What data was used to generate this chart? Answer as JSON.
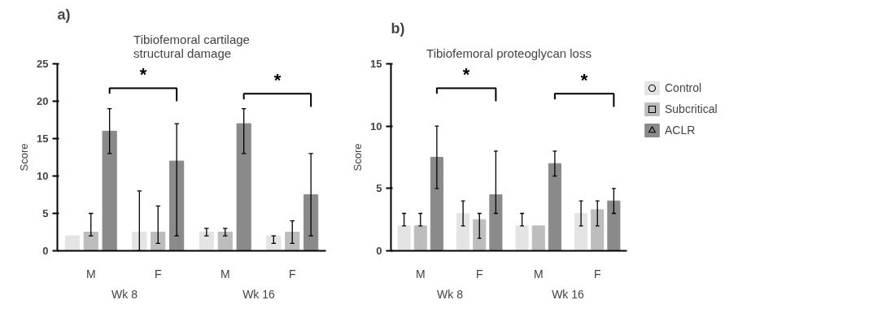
{
  "chart_data": [
    {
      "type": "bar",
      "title": "Tibiofemoral cartilage\nstructural damage",
      "ylabel": "Score",
      "categories": [
        "M",
        "F",
        "M",
        "F"
      ],
      "series": [
        {
          "color": "#e4e4e4",
          "values": [
            2,
            2.5,
            2.5,
            2
          ],
          "errors": [
            null,
            [
              0,
              8
            ],
            [
              2,
              3
            ],
            [
              1,
              2
            ]
          ]
        },
        {
          "color": "#bdbdbd",
          "values": [
            2.5,
            2.5,
            2.5,
            2.5
          ],
          "errors": [
            [
              2,
              5
            ],
            [
              1,
              6
            ],
            [
              2,
              3
            ],
            [
              1,
              4
            ]
          ]
        },
        {
          "color": "#8a8a8a",
          "values": [
            16,
            12,
            17,
            7.5
          ],
          "errors": [
            [
              13,
              19
            ],
            [
              2,
              17
            ],
            [
              13,
              19
            ],
            [
              2,
              13
            ]
          ]
        }
      ],
      "ylim": [
        0,
        25
      ],
      "yticks": [
        0,
        5,
        10,
        15,
        20,
        25
      ],
      "grid": false,
      "annotations": [
        "a)",
        "*",
        "*",
        "Wk 8",
        "Wk 16"
      ]
    },
    {
      "type": "bar",
      "title": "Tibiofemoral proteoglycan loss",
      "ylabel": "Score",
      "categories": [
        "M",
        "F",
        "M",
        "F"
      ],
      "series": [
        {
          "name": "Control",
          "color": "#e4e4e4",
          "marker": "circle",
          "values": [
            2,
            3,
            2,
            3
          ],
          "errors": [
            [
              2,
              3
            ],
            [
              2,
              4
            ],
            [
              2,
              3
            ],
            [
              2,
              4
            ]
          ]
        },
        {
          "name": "Subcritical",
          "color": "#bdbdbd",
          "marker": "square",
          "values": [
            2,
            2.5,
            2,
            3.3
          ],
          "errors": [
            [
              2,
              3
            ],
            [
              1,
              3
            ],
            null,
            [
              2,
              4
            ]
          ]
        },
        {
          "name": "ACLR",
          "color": "#8a8a8a",
          "marker": "triangle",
          "values": [
            7.5,
            4.5,
            7,
            4
          ],
          "errors": [
            [
              5,
              10
            ],
            [
              3,
              8
            ],
            [
              6,
              8
            ],
            [
              3,
              5
            ]
          ]
        }
      ],
      "ylim": [
        0,
        15
      ],
      "yticks": [
        0,
        5,
        10,
        15
      ],
      "grid": false,
      "legend": "right",
      "annotations": [
        "b)",
        "*",
        "*",
        "Wk 8",
        "Wk 16"
      ]
    }
  ]
}
